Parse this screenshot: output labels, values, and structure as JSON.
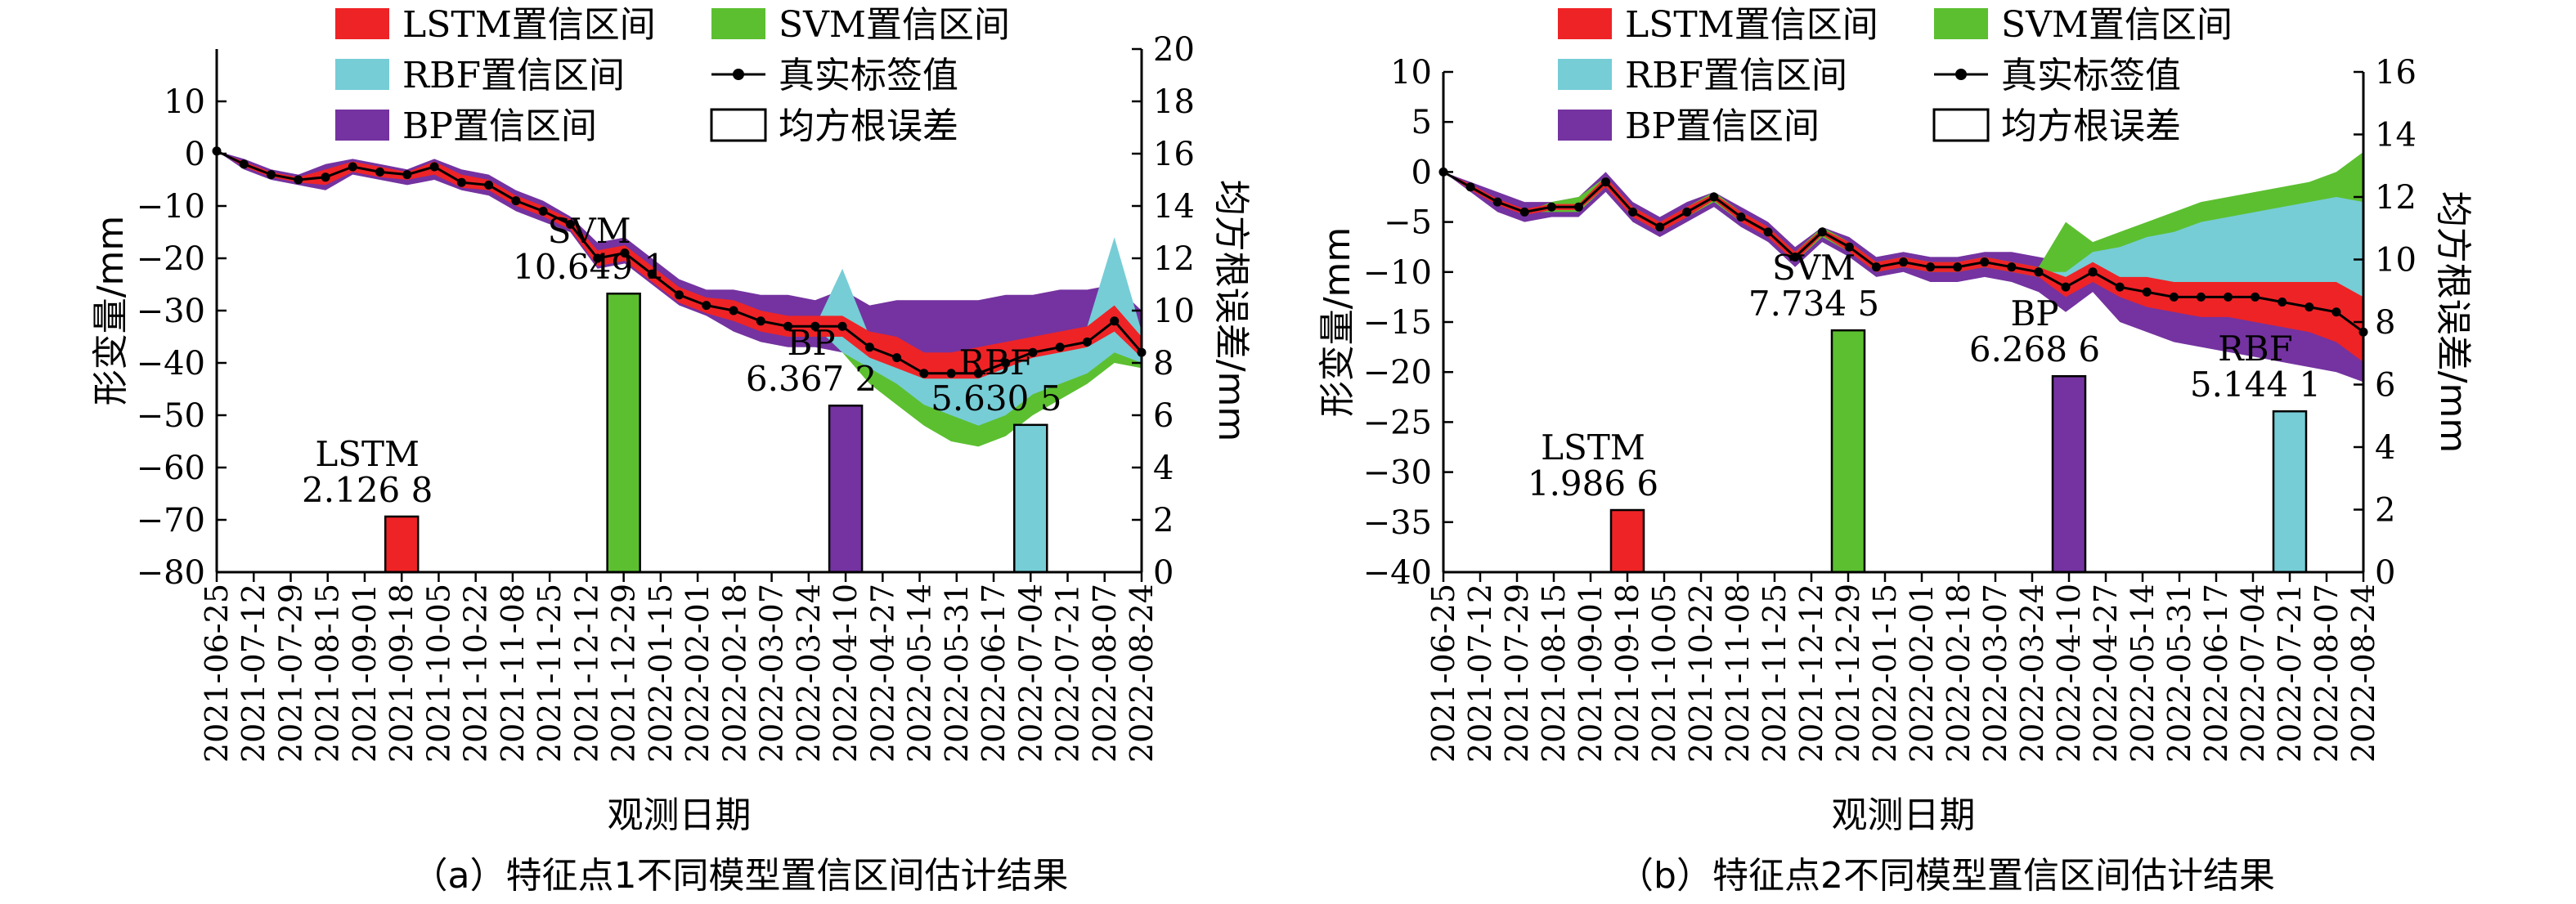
{
  "legend": {
    "lstm": "LSTM置信区间",
    "svm": "SVM置信区间",
    "rbf": "RBF置信区间",
    "truth": "真实标签值",
    "bp": "BP置信区间",
    "rmse": "均方根误差"
  },
  "colors": {
    "lstm": "#ee2326",
    "svm": "#5cbf30",
    "rbf": "#76cdd6",
    "bp": "#7433a0",
    "truth": "#000000"
  },
  "dates": [
    "2021-06-25",
    "2021-07-12",
    "2021-07-29",
    "2021-08-15",
    "2021-09-01",
    "2021-09-18",
    "2021-10-05",
    "2021-10-22",
    "2021-11-08",
    "2021-11-25",
    "2021-12-12",
    "2021-12-29",
    "2022-01-15",
    "2022-02-01",
    "2022-02-18",
    "2022-03-07",
    "2022-03-24",
    "2022-04-10",
    "2022-04-27",
    "2022-05-14",
    "2022-05-31",
    "2022-06-17",
    "2022-07-04",
    "2022-07-21",
    "2022-08-07",
    "2022-08-24"
  ],
  "chart_data": [
    {
      "type": "line",
      "caption": "（a）特征点1不同模型置信区间估计结果",
      "xlabel": "观测日期",
      "ylabel": "形变量/mm",
      "y2label": "均方根误差/mm",
      "ylim": [
        -80,
        20
      ],
      "yticks": [
        -80,
        -70,
        -60,
        -50,
        -40,
        -30,
        -20,
        -10,
        0,
        10
      ],
      "y2lim": [
        0,
        20
      ],
      "y2ticks": [
        0,
        2,
        4,
        6,
        8,
        10,
        12,
        14,
        16,
        18,
        20
      ],
      "truth": [
        0.5,
        -2,
        -4,
        -5,
        -4.5,
        -2.5,
        -3.5,
        -4,
        -2.5,
        -5.5,
        -6,
        -9,
        -11,
        -13.5,
        -20,
        -19,
        -23,
        -27,
        -29,
        -30,
        -32,
        -33,
        -33,
        -33,
        -37,
        -39,
        -42,
        -42,
        -42,
        -40,
        -38,
        -37,
        -36,
        -32,
        -38
      ],
      "bands": {
        "bp": {
          "upper": [
            0.5,
            -1,
            -3,
            -4,
            -2,
            -1,
            -2,
            -3,
            -1,
            -3,
            -4,
            -7,
            -9,
            -12,
            -17,
            -16,
            -20,
            -24,
            -26,
            -26,
            -27,
            -27,
            -28,
            -26,
            -29,
            -28,
            -28,
            -28,
            -28,
            -27,
            -27,
            -26,
            -26,
            -25,
            -30
          ],
          "lower": [
            0.5,
            -3,
            -5,
            -6,
            -7,
            -4,
            -5,
            -6,
            -5,
            -7,
            -8,
            -11,
            -13,
            -15,
            -22,
            -21,
            -25,
            -29,
            -31,
            -34,
            -36,
            -37,
            -37,
            -38,
            -40,
            -42,
            -44,
            -44,
            -44,
            -42,
            -40,
            -39,
            -38,
            -35,
            -40
          ]
        },
        "lstm": {
          "upper": [
            0.5,
            -1.5,
            -3.5,
            -4.5,
            -3,
            -1.5,
            -2.5,
            -3.5,
            -1.5,
            -4,
            -5,
            -8,
            -10,
            -12.5,
            -18.5,
            -17.5,
            -21.5,
            -25.5,
            -27.5,
            -28,
            -30,
            -31,
            -31,
            -31,
            -34,
            -35,
            -38,
            -38,
            -37,
            -36,
            -35,
            -34,
            -33,
            -29,
            -35
          ],
          "lower": [
            0.5,
            -2.5,
            -4.5,
            -5.5,
            -6,
            -3.5,
            -4.5,
            -5,
            -4,
            -6.5,
            -7,
            -10,
            -12,
            -14.5,
            -21.5,
            -20.5,
            -24.5,
            -28.5,
            -30.5,
            -32,
            -34,
            -35,
            -35,
            -35,
            -39,
            -41,
            -43,
            -43,
            -43,
            -41,
            -39,
            -38,
            -37,
            -34,
            -39
          ]
        },
        "rbf": {
          "upper": [
            0.5,
            -2,
            -4,
            -5,
            -4.5,
            -2.5,
            -3.5,
            -4,
            -2.5,
            -5.5,
            -6,
            -9,
            -11,
            -13.5,
            -20,
            -19,
            -23,
            -27,
            -29,
            -30,
            -32,
            -33,
            -33,
            -22,
            -35,
            -37,
            -40,
            -40,
            -40,
            -38,
            -36,
            -35,
            -33,
            -16,
            -34
          ],
          "lower": [
            0.5,
            -2,
            -4,
            -5,
            -4.5,
            -2.5,
            -3.5,
            -4,
            -2.5,
            -5.5,
            -6,
            -9,
            -11,
            -13.5,
            -20,
            -19,
            -23,
            -27,
            -29,
            -30,
            -32,
            -33,
            -33,
            -38,
            -41,
            -44,
            -48,
            -50,
            -52,
            -50,
            -46,
            -44,
            -42,
            -38,
            -40
          ]
        },
        "svm": {
          "upper": [
            0.5,
            -2,
            -4,
            -5,
            -4.5,
            -2.5,
            -3.5,
            -4,
            -2.5,
            -5.5,
            -6,
            -9,
            -11,
            -13.5,
            -20,
            -19,
            -23,
            -27,
            -29,
            -30,
            -32,
            -33,
            -33,
            -30,
            -36,
            -38,
            -41,
            -41,
            -41,
            -39,
            -37,
            -36,
            -34,
            -30,
            -36
          ],
          "lower": [
            0.5,
            -2,
            -4,
            -5,
            -4.5,
            -2.5,
            -3.5,
            -4,
            -2.5,
            -5.5,
            -6,
            -9,
            -11,
            -13.5,
            -20,
            -19,
            -23,
            -27,
            -29,
            -30,
            -32,
            -33,
            -33,
            -38,
            -44,
            -48,
            -52,
            -55,
            -56,
            -54,
            -50,
            -47,
            -44,
            -40,
            -41
          ]
        }
      },
      "rmse": [
        {
          "model": "LSTM",
          "value": 2.1268,
          "label": "2.126 8",
          "date_index": 5
        },
        {
          "model": "SVM",
          "value": 10.6491,
          "label": "10.649 1",
          "date_index": 11
        },
        {
          "model": "BP",
          "value": 6.3672,
          "label": "6.367 2",
          "date_index": 17
        },
        {
          "model": "RBF",
          "value": 5.6305,
          "label": "5.630 5",
          "date_index": 22
        }
      ]
    },
    {
      "type": "line",
      "caption": "（b）特征点2不同模型置信区间估计结果",
      "xlabel": "观测日期",
      "ylabel": "形变量/mm",
      "y2label": "均方根误差/mm",
      "ylim": [
        -40,
        10
      ],
      "yticks": [
        -40,
        -35,
        -30,
        -25,
        -20,
        -15,
        -10,
        -5,
        0,
        5,
        10
      ],
      "y2lim": [
        0,
        16
      ],
      "y2ticks": [
        0,
        2,
        4,
        6,
        8,
        10,
        12,
        14,
        16
      ],
      "truth": [
        0,
        -1.5,
        -3,
        -4,
        -3.5,
        -3.5,
        -1,
        -4,
        -5.5,
        -4,
        -2.5,
        -4.5,
        -6,
        -8.5,
        -6,
        -7.5,
        -9.5,
        -9,
        -9.5,
        -9.5,
        -9,
        -9.5,
        -10,
        -11.5,
        -10,
        -11.5,
        -12,
        -12.5,
        -12.5,
        -12.5,
        -12.5,
        -13,
        -13.5,
        -14,
        -16
      ],
      "bands": {
        "bp": {
          "upper": [
            0,
            -1,
            -2,
            -3,
            -3,
            -2.5,
            0,
            -3,
            -4.5,
            -3,
            -2,
            -3.5,
            -5,
            -7.5,
            -5.5,
            -6.5,
            -8.5,
            -8,
            -8.5,
            -8.5,
            -8,
            -8,
            -8.5,
            -9,
            -8,
            -8,
            -7.5,
            -7,
            -6.5,
            -6,
            -5.5,
            -5,
            -5,
            -4.5,
            -5
          ],
          "lower": [
            0,
            -2,
            -4,
            -5,
            -4.5,
            -4.5,
            -2,
            -5,
            -6.5,
            -5,
            -3.5,
            -5.5,
            -7,
            -9.5,
            -7,
            -8.5,
            -10.5,
            -10,
            -11,
            -11,
            -10.5,
            -11,
            -12,
            -14,
            -12,
            -15,
            -16,
            -17,
            -17.5,
            -18,
            -18.5,
            -19,
            -19.5,
            -20,
            -21
          ]
        },
        "lstm": {
          "upper": [
            0,
            -1.2,
            -2.7,
            -3.7,
            -3.2,
            -3.2,
            -0.5,
            -3.5,
            -5,
            -3.5,
            -2.2,
            -4,
            -5.5,
            -8,
            -5.7,
            -7,
            -9,
            -8.5,
            -9,
            -9,
            -8.5,
            -9,
            -9.5,
            -10.5,
            -9,
            -10.5,
            -10.5,
            -11,
            -11,
            -11,
            -11,
            -11,
            -11,
            -11,
            -12.5
          ],
          "lower": [
            0,
            -1.8,
            -3.3,
            -4.3,
            -3.8,
            -3.8,
            -1.5,
            -4.5,
            -6,
            -4.5,
            -2.8,
            -5,
            -6.5,
            -9,
            -6.3,
            -8,
            -10,
            -9.5,
            -10,
            -10,
            -9.5,
            -10,
            -10.5,
            -12.5,
            -11,
            -12.5,
            -13.5,
            -14,
            -14.5,
            -14.5,
            -15,
            -15.5,
            -16,
            -17,
            -19
          ]
        },
        "rbf": {
          "upper": [
            0,
            -1.5,
            -3,
            -4,
            -3.5,
            -3.5,
            -1,
            -4,
            -5.5,
            -4,
            -2.5,
            -4.5,
            -6,
            -8.5,
            -6,
            -7.5,
            -9.5,
            -9,
            -9.5,
            -9.5,
            -9,
            -9.5,
            -10,
            -10,
            -8,
            -7.5,
            -6.5,
            -6,
            -5,
            -4.5,
            -4,
            -3.5,
            -3,
            -2.5,
            -3
          ],
          "lower": [
            0,
            -1.5,
            -3,
            -4,
            -3.5,
            -3.5,
            -1,
            -4,
            -5.5,
            -4,
            -2.5,
            -4.5,
            -6,
            -8.5,
            -6,
            -7.5,
            -9.5,
            -9,
            -9.5,
            -9.5,
            -9,
            -9.5,
            -10,
            -12,
            -10.5,
            -12,
            -13,
            -13.5,
            -14,
            -14,
            -14.5,
            -15,
            -15.5,
            -16.5,
            -18
          ]
        },
        "svm": {
          "upper": [
            0,
            -1.5,
            -3,
            -4,
            -3,
            -2.5,
            -0.5,
            -3.5,
            -5,
            -3.5,
            -2,
            -4,
            -5.5,
            -8,
            -5.5,
            -7,
            -9,
            -8.5,
            -9,
            -9,
            -8.5,
            -9,
            -9.5,
            -5,
            -7,
            -6,
            -5,
            -4,
            -3,
            -2.5,
            -2,
            -1.5,
            -1,
            0,
            2
          ],
          "lower": [
            0,
            -1.5,
            -3,
            -4,
            -4,
            -4,
            -1.5,
            -4.5,
            -6,
            -4.5,
            -3,
            -5,
            -6.5,
            -9,
            -6.5,
            -8,
            -10,
            -9.5,
            -10,
            -10,
            -9.5,
            -10,
            -10.5,
            -12,
            -10.5,
            -12,
            -13,
            -13.5,
            -14,
            -14,
            -14.5,
            -15,
            -15.5,
            -16.5,
            -18
          ]
        }
      },
      "rmse": [
        {
          "model": "LSTM",
          "value": 1.9866,
          "label": "1.986 6",
          "date_index": 5
        },
        {
          "model": "SVM",
          "value": 7.7345,
          "label": "7.734 5",
          "date_index": 11
        },
        {
          "model": "BP",
          "value": 6.2686,
          "label": "6.268 6",
          "date_index": 17
        },
        {
          "model": "RBF",
          "value": 5.1441,
          "label": "5.144 1",
          "date_index": 23
        }
      ]
    }
  ]
}
